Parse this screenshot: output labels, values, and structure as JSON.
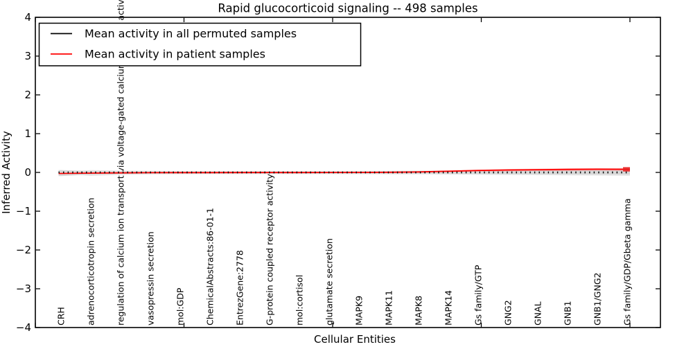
{
  "chart_data": {
    "type": "line",
    "title": "Rapid glucocorticoid signaling -- 498 samples",
    "xlabel": "Cellular Entities",
    "ylabel": "Inferred Activity",
    "ylim": [
      -4,
      4
    ],
    "grid": false,
    "legend_position": "upper left",
    "ytick_labels": [
      "4",
      "3",
      "2",
      "1",
      "0",
      "−1",
      "−2",
      "−3",
      "−4"
    ],
    "categories": [
      "CRH",
      "adrenocorticotropin secretion",
      "regulation of calcium ion transport via voltage-gated calcium channel activity",
      "vasopressin secretion",
      "mol:GDP",
      "ChemicalAbstracts:86-01-1",
      "EntrezGene:2778",
      "G-protein coupled receptor activity",
      "mol:cortisol",
      "glutamate secretion",
      "MAPK9",
      "MAPK11",
      "MAPK8",
      "MAPK14",
      "Gs family/GTP",
      "GNG2",
      "GNAL",
      "GNB1",
      "GNB1/GNG2",
      "Gs family/GDP/Gbeta gamma"
    ],
    "legend": [
      {
        "label": "Mean activity in all permuted samples",
        "color": "#000000"
      },
      {
        "label": "Mean activity in patient samples",
        "color": "#ff0000"
      }
    ],
    "series": [
      {
        "name": "Mean activity in all permuted samples",
        "color": "#000000",
        "line_style": "dashed",
        "values": [
          0,
          0,
          0,
          0,
          0,
          0,
          0,
          0,
          0,
          0,
          0,
          0,
          0,
          0,
          0,
          0,
          0,
          0,
          0,
          0
        ]
      },
      {
        "name": "Mean activity in patient samples",
        "color": "#ff0000",
        "line_style": "solid",
        "values": [
          -0.027,
          -0.018,
          -0.012,
          -0.008,
          -0.006,
          -0.005,
          -0.004,
          -0.004,
          -0.003,
          -0.002,
          0.0,
          0.003,
          0.012,
          0.03,
          0.05,
          0.062,
          0.07,
          0.077,
          0.083,
          0.08
        ]
      }
    ],
    "bands": [
      {
        "name": "permuted-samples-spread",
        "color": "#dedede",
        "upper": [
          0.1,
          0.06,
          0.047,
          0.042,
          0.038,
          0.036,
          0.036,
          0.036,
          0.036,
          0.038,
          0.04,
          0.042,
          0.046,
          0.052,
          0.07,
          0.082,
          0.09,
          0.096,
          0.102,
          0.11
        ],
        "lower": [
          -0.155,
          -0.09,
          -0.062,
          -0.052,
          -0.046,
          -0.044,
          -0.044,
          -0.044,
          -0.044,
          -0.044,
          -0.046,
          -0.048,
          -0.05,
          -0.054,
          -0.06,
          -0.065,
          -0.07,
          -0.075,
          -0.08,
          -0.088
        ]
      },
      {
        "name": "patient-samples-spread",
        "color": "#ff8080",
        "start_index": 11,
        "upper": [
          0,
          0,
          0,
          0,
          0,
          0,
          0,
          0,
          0,
          0,
          0,
          0.006,
          0.022,
          0.045,
          0.068,
          0.087,
          0.097,
          0.105,
          0.113,
          0.112
        ],
        "lower": [
          0,
          0,
          0,
          0,
          0,
          0,
          0,
          0,
          0,
          0,
          0,
          0.0,
          0.004,
          0.014,
          0.026,
          0.033,
          0.04,
          0.045,
          0.05,
          0.044
        ]
      }
    ]
  }
}
